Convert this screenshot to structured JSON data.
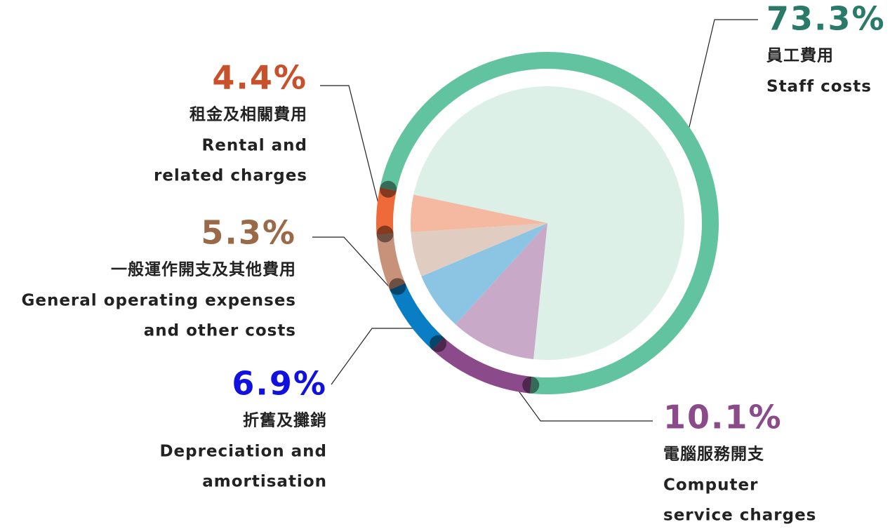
{
  "chart_data": {
    "type": "pie",
    "labels_zh": [
      "員工費用",
      "電腦服務開支",
      "折舊及攤銷",
      "一般運作開支及其他費用",
      "租金及相關費用"
    ],
    "labels_en": [
      [
        "Staff costs"
      ],
      [
        "Computer",
        "service charges"
      ],
      [
        "Depreciation and",
        "amortisation"
      ],
      [
        "General operating expenses",
        "and other costs"
      ],
      [
        "Rental and",
        "related charges"
      ]
    ],
    "values": [
      73.3,
      10.1,
      6.9,
      5.3,
      4.4
    ],
    "value_labels": [
      "73.3%",
      "10.1%",
      "6.9%",
      "5.3%",
      "4.4%"
    ],
    "colors": [
      "#dcf0e8",
      "#c8aac8",
      "#8cc4e4",
      "#e0ccc0",
      "#f5b8a0"
    ],
    "ring_colors": [
      "#62c3a0",
      "#8b4a8a",
      "#0a7ec4",
      "#c8917a",
      "#ef6a3a"
    ],
    "label_colors": [
      "#2a7a6a",
      "#8b4a8a",
      "#1010e0",
      "#9a6a48",
      "#c8502a"
    ]
  }
}
